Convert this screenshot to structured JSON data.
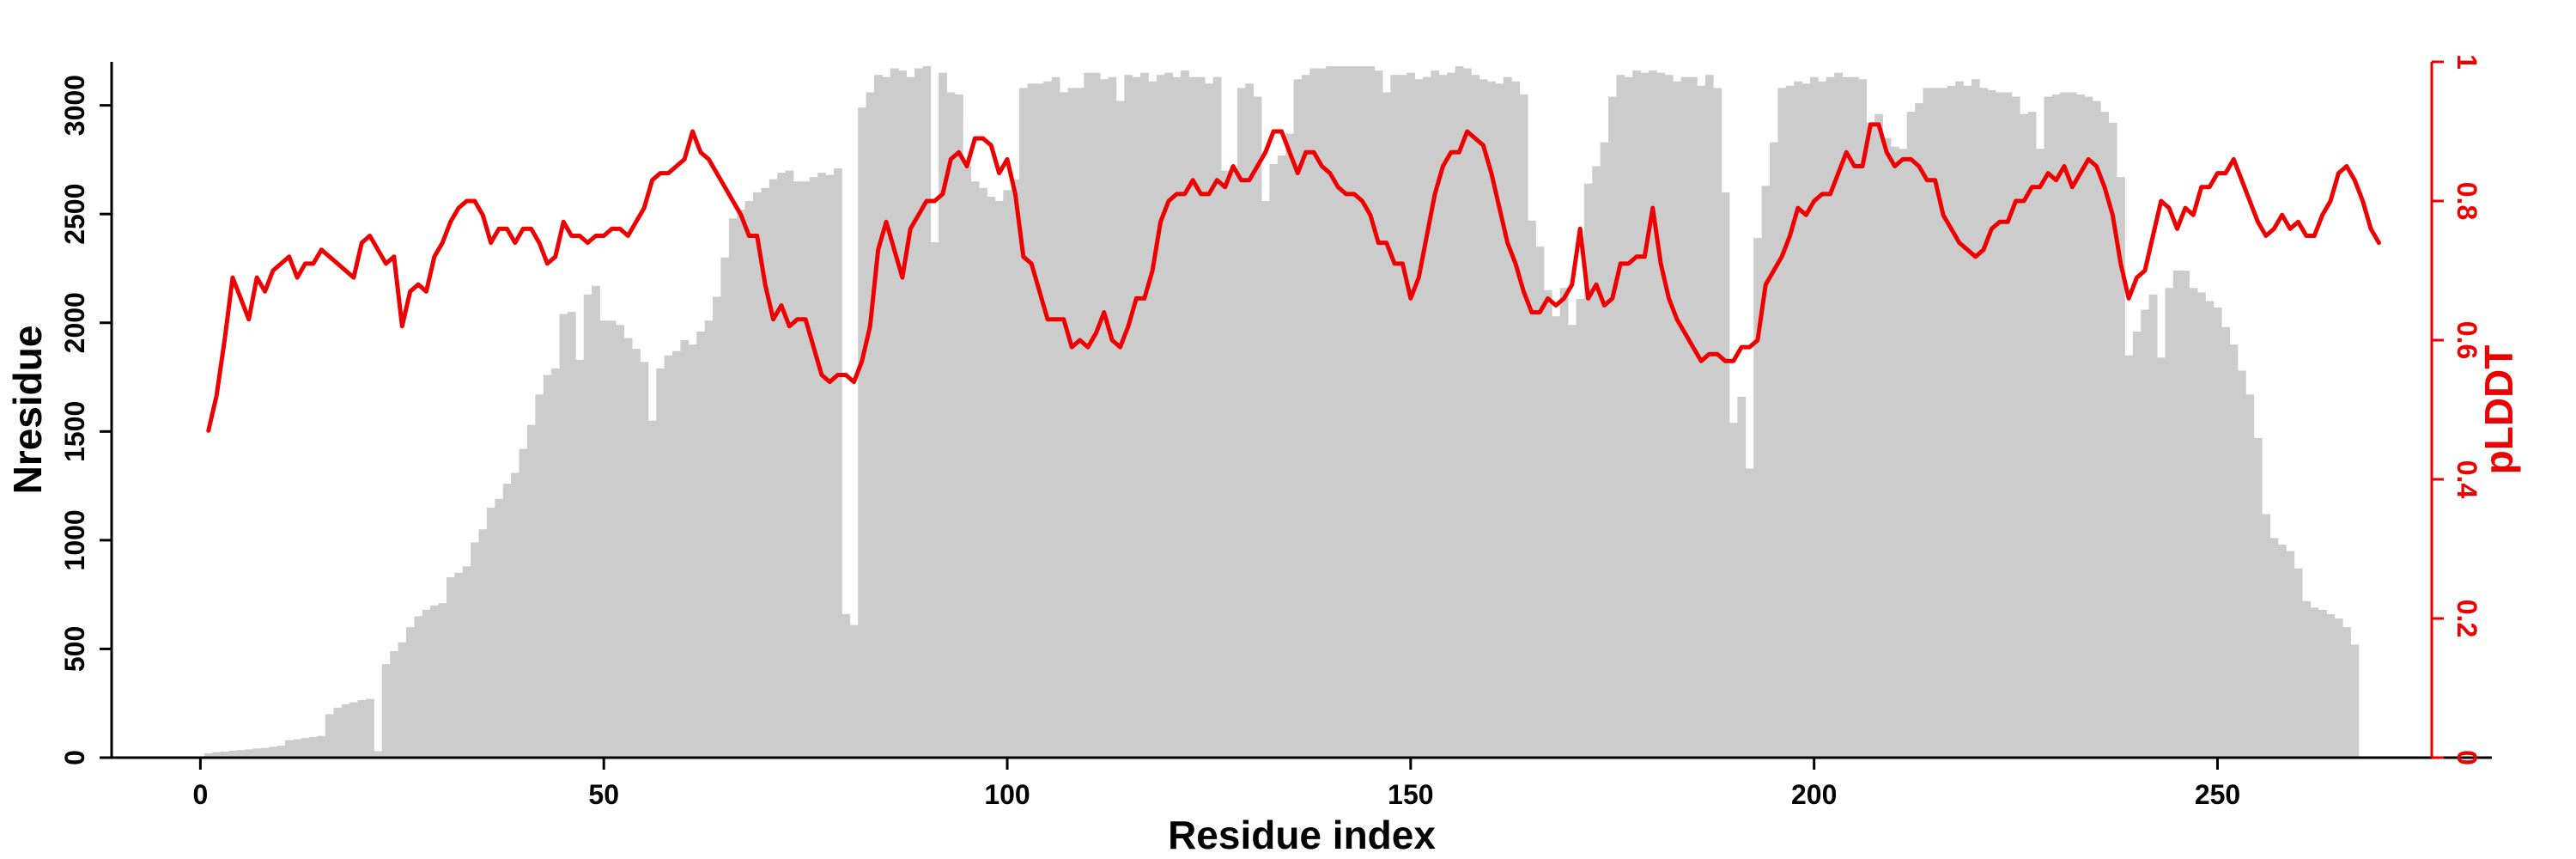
{
  "chart_data": {
    "type": "bar+line",
    "x_axis": {
      "label": "Residue index",
      "ticks": [
        0,
        50,
        100,
        150,
        200,
        250
      ],
      "range": [
        -11,
        284
      ]
    },
    "y_left": {
      "label": "Nresidue",
      "ticks": [
        0,
        500,
        1000,
        1500,
        2000,
        2500,
        3000
      ],
      "range": [
        0,
        3200
      ]
    },
    "y_right": {
      "label": "pLDDT",
      "ticks": [
        0,
        0.2,
        0.4,
        0.6,
        0.8,
        1
      ],
      "range": [
        0,
        1
      ]
    },
    "colors": {
      "bars": "#cccccc",
      "line": "#ee0000",
      "axis": "#000000",
      "right_axis": "#ee0000"
    },
    "series": [
      {
        "type": "bar",
        "axis": "left",
        "values": [
          20,
          25,
          28,
          32,
          35,
          38,
          42,
          45,
          50,
          55,
          80,
          85,
          90,
          95,
          100,
          200,
          230,
          245,
          255,
          265,
          270,
          30,
          430,
          490,
          530,
          600,
          650,
          680,
          700,
          710,
          830,
          850,
          880,
          990,
          1050,
          1150,
          1190,
          1260,
          1310,
          1420,
          1530,
          1670,
          1760,
          1790,
          2040,
          2050,
          1830,
          2130,
          2170,
          2010,
          2010,
          1990,
          1930,
          1880,
          1820,
          1550,
          1790,
          1850,
          1870,
          1920,
          1900,
          1960,
          2010,
          2120,
          2300,
          2480,
          2520,
          2560,
          2600,
          2620,
          2660,
          2690,
          2700,
          2650,
          2650,
          2670,
          2690,
          2680,
          2710,
          660,
          610,
          2990,
          3060,
          3140,
          3130,
          3170,
          3160,
          3130,
          3170,
          3180,
          2370,
          3150,
          3060,
          3050,
          2720,
          2650,
          2620,
          2580,
          2560,
          2610,
          2660,
          3080,
          3100,
          3100,
          3110,
          3130,
          3060,
          3080,
          3080,
          3150,
          3150,
          3120,
          3130,
          3020,
          3140,
          3130,
          3150,
          3110,
          3140,
          3150,
          3130,
          3160,
          3130,
          3130,
          3100,
          3130,
          2700,
          2700,
          3080,
          3100,
          3040,
          2560,
          2730,
          2770,
          2870,
          3120,
          3140,
          3170,
          3170,
          3180,
          3180,
          3180,
          3180,
          3180,
          3180,
          3160,
          3060,
          3140,
          3140,
          3150,
          3120,
          3130,
          3160,
          3140,
          3150,
          3180,
          3170,
          3140,
          3120,
          3110,
          3100,
          3130,
          3110,
          3050,
          2470,
          2350,
          2150,
          2030,
          2160,
          1990,
          2110,
          2640,
          2720,
          2830,
          3040,
          3140,
          3130,
          3160,
          3150,
          3160,
          3150,
          3140,
          3110,
          3130,
          3130,
          3090,
          3140,
          3080,
          2600,
          1540,
          1660,
          1330,
          2390,
          2630,
          2830,
          3080,
          3090,
          3110,
          3100,
          3130,
          3110,
          3130,
          3150,
          3130,
          3130,
          3120,
          2920,
          2960,
          2850,
          2810,
          2800,
          2970,
          3010,
          3080,
          3080,
          3080,
          3090,
          3110,
          3090,
          3120,
          3080,
          3070,
          3060,
          3060,
          3040,
          2960,
          2970,
          2800,
          3040,
          3050,
          3060,
          3060,
          3050,
          3040,
          3020,
          2970,
          2920,
          2670,
          1850,
          1960,
          2060,
          2130,
          1840,
          2160,
          2240,
          2240,
          2160,
          2140,
          2100,
          2070,
          1980,
          1900,
          1780,
          1670,
          1470,
          1120,
          1010,
          980,
          950,
          870,
          720,
          690,
          680,
          660,
          640,
          600,
          520
        ]
      },
      {
        "type": "line",
        "axis": "right",
        "values": [
          0.47,
          0.52,
          0.6,
          0.69,
          0.66,
          0.63,
          0.69,
          0.67,
          0.7,
          0.71,
          0.72,
          0.69,
          0.71,
          0.71,
          0.73,
          0.72,
          0.71,
          0.7,
          0.69,
          0.74,
          0.75,
          0.73,
          0.71,
          0.72,
          0.62,
          0.67,
          0.68,
          0.67,
          0.72,
          0.74,
          0.77,
          0.79,
          0.8,
          0.8,
          0.78,
          0.74,
          0.76,
          0.76,
          0.74,
          0.76,
          0.76,
          0.74,
          0.71,
          0.72,
          0.77,
          0.75,
          0.75,
          0.74,
          0.75,
          0.75,
          0.76,
          0.76,
          0.75,
          0.77,
          0.79,
          0.83,
          0.84,
          0.84,
          0.85,
          0.86,
          0.9,
          0.87,
          0.86,
          0.84,
          0.82,
          0.8,
          0.78,
          0.75,
          0.75,
          0.68,
          0.63,
          0.65,
          0.62,
          0.63,
          0.63,
          0.59,
          0.55,
          0.54,
          0.55,
          0.55,
          0.54,
          0.57,
          0.62,
          0.73,
          0.77,
          0.73,
          0.69,
          0.76,
          0.78,
          0.8,
          0.8,
          0.81,
          0.86,
          0.87,
          0.85,
          0.89,
          0.89,
          0.88,
          0.84,
          0.86,
          0.81,
          0.72,
          0.71,
          0.67,
          0.63,
          0.63,
          0.63,
          0.59,
          0.6,
          0.59,
          0.61,
          0.64,
          0.6,
          0.59,
          0.62,
          0.66,
          0.66,
          0.7,
          0.77,
          0.8,
          0.81,
          0.81,
          0.83,
          0.81,
          0.81,
          0.83,
          0.82,
          0.85,
          0.83,
          0.83,
          0.85,
          0.87,
          0.9,
          0.9,
          0.87,
          0.84,
          0.87,
          0.87,
          0.85,
          0.84,
          0.82,
          0.81,
          0.81,
          0.8,
          0.78,
          0.74,
          0.74,
          0.71,
          0.71,
          0.66,
          0.69,
          0.75,
          0.81,
          0.85,
          0.87,
          0.87,
          0.9,
          0.89,
          0.88,
          0.84,
          0.79,
          0.74,
          0.71,
          0.67,
          0.64,
          0.64,
          0.66,
          0.65,
          0.66,
          0.68,
          0.76,
          0.66,
          0.68,
          0.65,
          0.66,
          0.71,
          0.71,
          0.72,
          0.72,
          0.79,
          0.71,
          0.66,
          0.63,
          0.61,
          0.59,
          0.57,
          0.58,
          0.58,
          0.57,
          0.57,
          0.59,
          0.59,
          0.6,
          0.68,
          0.7,
          0.72,
          0.75,
          0.79,
          0.78,
          0.8,
          0.81,
          0.81,
          0.84,
          0.87,
          0.85,
          0.85,
          0.91,
          0.91,
          0.87,
          0.85,
          0.86,
          0.86,
          0.85,
          0.83,
          0.83,
          0.78,
          0.76,
          0.74,
          0.73,
          0.72,
          0.73,
          0.76,
          0.77,
          0.77,
          0.8,
          0.8,
          0.82,
          0.82,
          0.84,
          0.83,
          0.85,
          0.82,
          0.84,
          0.86,
          0.85,
          0.82,
          0.78,
          0.71,
          0.66,
          0.69,
          0.7,
          0.75,
          0.8,
          0.79,
          0.76,
          0.79,
          0.78,
          0.82,
          0.82,
          0.84,
          0.84,
          0.86,
          0.83,
          0.8,
          0.77,
          0.75,
          0.76,
          0.78,
          0.76,
          0.77,
          0.75,
          0.75,
          0.78,
          0.8,
          0.84,
          0.85,
          0.83,
          0.8,
          0.76,
          0.74
        ]
      }
    ]
  }
}
